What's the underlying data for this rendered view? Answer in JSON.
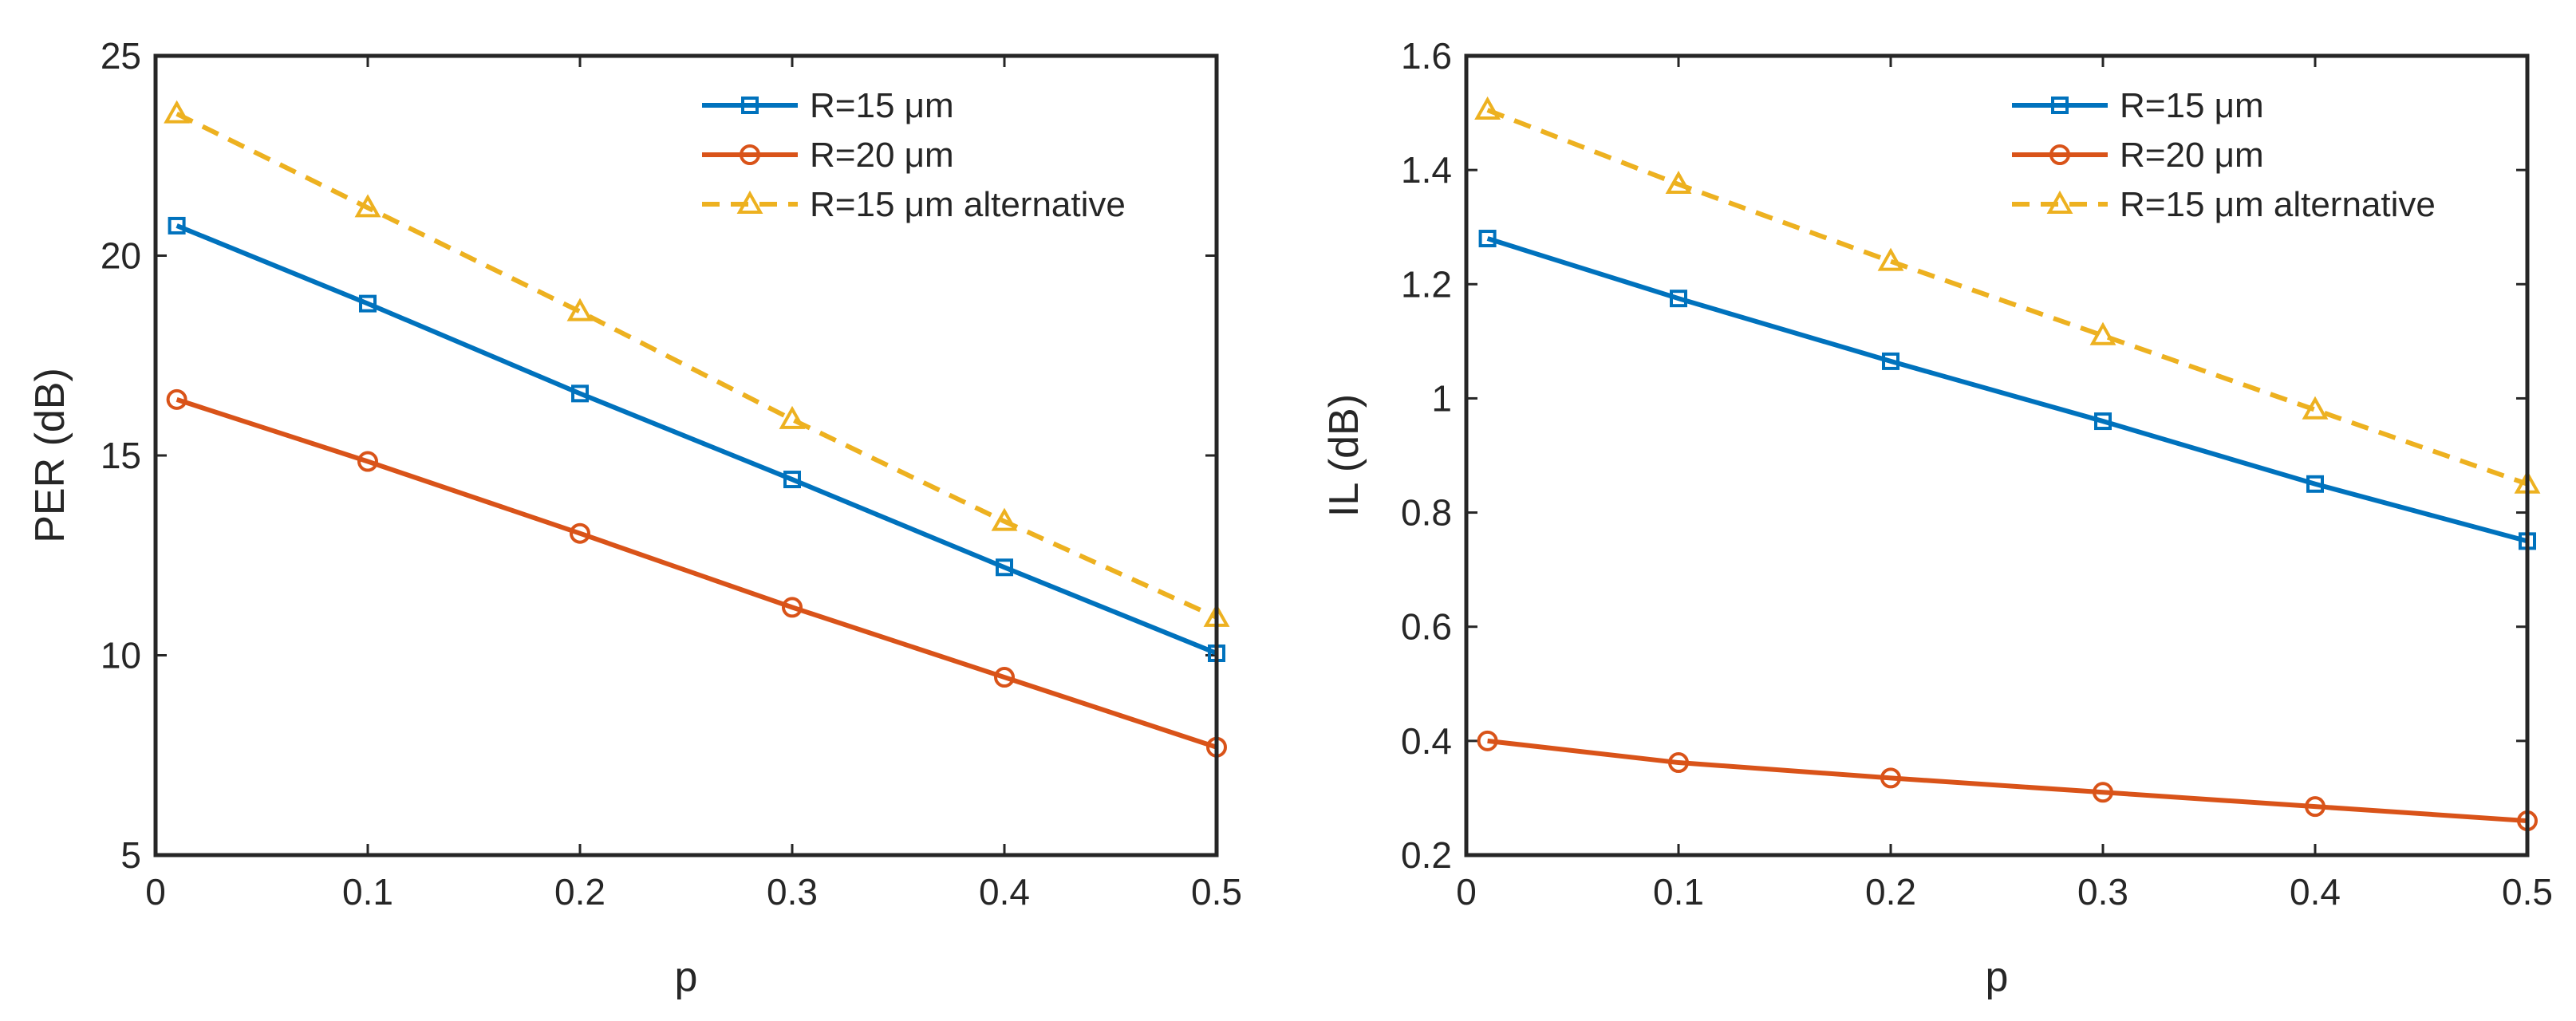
{
  "chart_data": [
    {
      "type": "line",
      "title": "",
      "xlabel": "p",
      "ylabel": "PER (dB)",
      "xlim": [
        0,
        0.5
      ],
      "ylim": [
        5,
        25
      ],
      "xticks": [
        0,
        0.1,
        0.2,
        0.3,
        0.4,
        0.5
      ],
      "xtick_labels": [
        "0",
        "0.1",
        "0.2",
        "0.3",
        "0.4",
        "0.5"
      ],
      "yticks": [
        5,
        10,
        15,
        20,
        25
      ],
      "ytick_labels": [
        "5",
        "10",
        "15",
        "20",
        "25"
      ],
      "legend_position": "top-right",
      "x": [
        0.01,
        0.1,
        0.2,
        0.3,
        0.4,
        0.5
      ],
      "series": [
        {
          "name": "R=15 μm",
          "values": [
            20.75,
            18.8,
            16.55,
            14.4,
            12.2,
            10.05
          ]
        },
        {
          "name": "R=20 μm",
          "values": [
            16.4,
            14.85,
            13.05,
            11.2,
            9.45,
            7.7
          ]
        },
        {
          "name": "R=15 μm alternative",
          "values": [
            23.55,
            21.2,
            18.6,
            15.9,
            13.35,
            10.95
          ]
        }
      ]
    },
    {
      "type": "line",
      "title": "",
      "xlabel": "p",
      "ylabel": "IL (dB)",
      "xlim": [
        0,
        0.5
      ],
      "ylim": [
        0.2,
        1.6
      ],
      "xticks": [
        0,
        0.1,
        0.2,
        0.3,
        0.4,
        0.5
      ],
      "xtick_labels": [
        "0",
        "0.1",
        "0.2",
        "0.3",
        "0.4",
        "0.5"
      ],
      "yticks": [
        0.2,
        0.4,
        0.6,
        0.8,
        1.0,
        1.2,
        1.4,
        1.6
      ],
      "ytick_labels": [
        "0.2",
        "0.4",
        "0.6",
        "0.8",
        "1",
        "1.2",
        "1.4",
        "1.6"
      ],
      "legend_position": "top-right",
      "x": [
        0.01,
        0.1,
        0.2,
        0.3,
        0.4,
        0.5
      ],
      "series": [
        {
          "name": "R=15 μm",
          "values": [
            1.28,
            1.175,
            1.065,
            0.96,
            0.85,
            0.75
          ]
        },
        {
          "name": "R=20 μm",
          "values": [
            0.4,
            0.362,
            0.335,
            0.31,
            0.285,
            0.26
          ]
        },
        {
          "name": "R=15 μm alternative",
          "values": [
            1.505,
            1.375,
            1.24,
            1.11,
            0.98,
            0.85
          ]
        }
      ]
    }
  ],
  "series_styles": [
    {
      "color": "#0072BD",
      "marker": "square",
      "dashed": false
    },
    {
      "color": "#D95319",
      "marker": "circle",
      "dashed": false
    },
    {
      "color": "#EDB120",
      "marker": "triangle",
      "dashed": true
    }
  ]
}
